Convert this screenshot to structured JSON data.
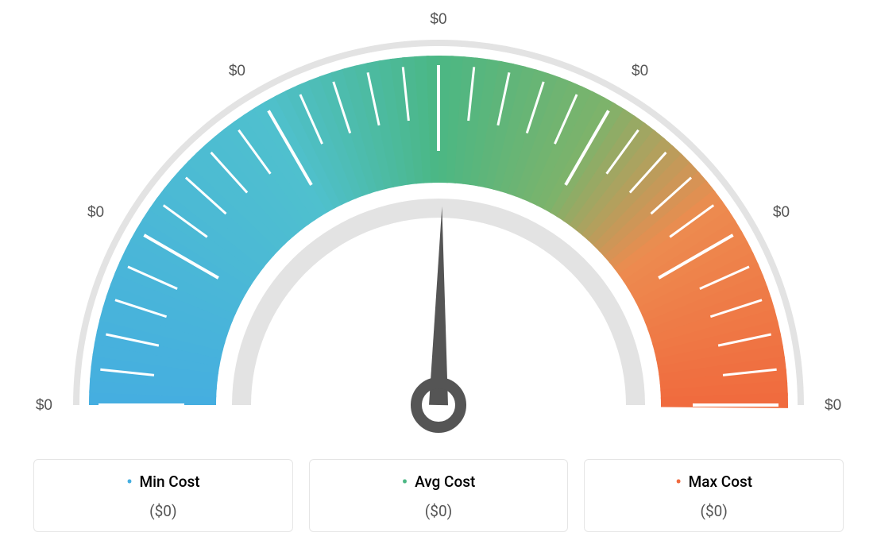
{
  "gauge": {
    "type": "gauge",
    "background_color": "#ffffff",
    "outer_ring_color": "#e3e3e3",
    "inner_ring_color": "#e3e3e3",
    "tick_color": "#ffffff",
    "tick_label_color": "#555555",
    "tick_label_fontsize": 19,
    "needle_color": "#555555",
    "needle_angle_deg": 91,
    "gradient_stops": [
      {
        "pct": 0,
        "color": "#45aee0"
      },
      {
        "pct": 33,
        "color": "#4fc0ce"
      },
      {
        "pct": 50,
        "color": "#4bb784"
      },
      {
        "pct": 66,
        "color": "#7cb36b"
      },
      {
        "pct": 80,
        "color": "#ed8b4f"
      },
      {
        "pct": 100,
        "color": "#f06a3e"
      }
    ],
    "scale_labels": [
      "$0",
      "$0",
      "$0",
      "$0",
      "$0",
      "$0",
      "$0"
    ],
    "major_tick_count": 7,
    "minor_ticks_between": 4,
    "outer_radius": 460,
    "band_outer_radius": 440,
    "band_inner_radius": 280,
    "inner_ring_radius": 260
  },
  "legend": {
    "items": [
      {
        "key": "min",
        "label": "Min Cost",
        "color": "#45aee0",
        "value": "($0)"
      },
      {
        "key": "avg",
        "label": "Avg Cost",
        "color": "#4bb784",
        "value": "($0)"
      },
      {
        "key": "max",
        "label": "Max Cost",
        "color": "#f06a3e",
        "value": "($0)"
      }
    ],
    "card_border_color": "#e5e5e5",
    "card_border_radius": 6,
    "label_fontsize": 19,
    "value_fontsize": 19,
    "value_color": "#555555"
  }
}
